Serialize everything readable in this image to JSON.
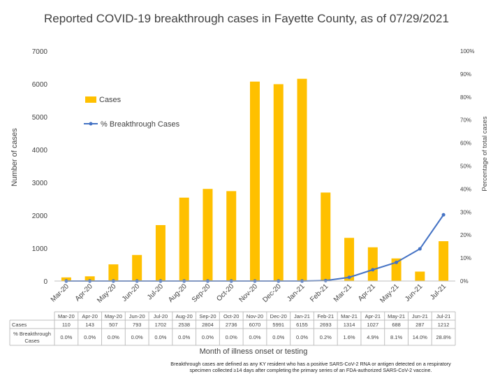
{
  "chart_data": {
    "type": "bar",
    "title": "Reported COVID-19 breakthrough cases in Fayette County, as of 07/29/2021",
    "xlabel": "Month of illness onset or testing",
    "ylabel": "Number of cases",
    "y2label": "Percentage of total cases",
    "categories": [
      "Mar-20",
      "Apr-20",
      "May-20",
      "Jun-20",
      "Jul-20",
      "Aug-20",
      "Sep-20",
      "Oct-20",
      "Nov-20",
      "Dec-20",
      "Jan-21",
      "Feb-21",
      "Mar-21",
      "Apr-21",
      "May-21",
      "Jun-21",
      "Jul-21"
    ],
    "ylim": [
      0,
      7000
    ],
    "yticks": [
      "0",
      "1000",
      "2000",
      "3000",
      "4000",
      "5000",
      "6000",
      "7000"
    ],
    "y2lim": [
      0,
      100
    ],
    "y2ticks": [
      "0%",
      "10%",
      "20%",
      "30%",
      "40%",
      "50%",
      "60%",
      "70%",
      "80%",
      "90%",
      "100%"
    ],
    "legend_position": "left",
    "series": [
      {
        "name": "Cases",
        "type": "bar",
        "color": "#FFC000",
        "values": [
          110,
          143,
          507,
          793,
          1702,
          2538,
          2804,
          2736,
          6070,
          5991,
          6155,
          2693,
          1314,
          1027,
          688,
          287,
          1212
        ]
      },
      {
        "name": "% Breakthrough Cases",
        "type": "line",
        "axis": "right",
        "color": "#4472C4",
        "values": [
          0,
          0,
          0,
          0,
          0,
          0,
          0,
          0,
          0,
          0,
          0,
          0.2,
          1.6,
          4.9,
          8.1,
          14.0,
          28.8
        ]
      }
    ],
    "table": {
      "rows": [
        {
          "label": "Cases",
          "values": [
            "110",
            "143",
            "507",
            "793",
            "1702",
            "2538",
            "2804",
            "2736",
            "6070",
            "5991",
            "6155",
            "2693",
            "1314",
            "1027",
            "688",
            "287",
            "1212"
          ]
        },
        {
          "label": "% Breakthrough Cases",
          "values": [
            "0.0%",
            "0.0%",
            "0.0%",
            "0.0%",
            "0.0%",
            "0.0%",
            "0.0%",
            "0.0%",
            "0.0%",
            "0.0%",
            "0.0%",
            "0.2%",
            "1.6%",
            "4.9%",
            "8.1%",
            "14.0%",
            "28.8%"
          ]
        }
      ]
    }
  },
  "footnote": {
    "line1": "Breakthrough cases are defined as any KY resident who has a positive SARS-CoV-2 RNA or antigen detected on a respiratory",
    "line2": "specimen collected ≥14 days after completing the primary series of an FDA-authorized SARS-CoV-2 vaccine."
  }
}
